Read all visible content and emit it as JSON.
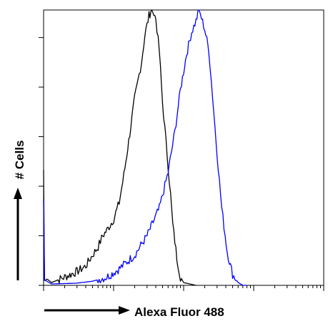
{
  "chart_data": {
    "type": "line",
    "title": "",
    "xlabel": "Alexa Fluor 488",
    "ylabel": "# Cells",
    "x_scale": "log",
    "xlim": [
      1,
      10000
    ],
    "ylim": [
      0,
      100
    ],
    "grid": false,
    "legend": "none",
    "y_tick_values": [
      0,
      18,
      36,
      54,
      72,
      90
    ],
    "series": [
      {
        "color": "#000000",
        "points": [
          [
            1.0,
            42
          ],
          [
            1.03,
            3
          ],
          [
            1.3,
            1
          ],
          [
            2,
            3
          ],
          [
            3,
            5
          ],
          [
            4,
            7
          ],
          [
            5,
            11
          ],
          [
            6,
            14
          ],
          [
            7,
            18
          ],
          [
            8,
            20
          ],
          [
            10,
            24
          ],
          [
            12,
            30
          ],
          [
            14,
            40
          ],
          [
            17,
            55
          ],
          [
            20,
            68
          ],
          [
            25,
            81
          ],
          [
            28,
            91
          ],
          [
            32,
            98
          ],
          [
            35,
            100
          ],
          [
            40,
            97
          ],
          [
            45,
            85
          ],
          [
            50,
            66
          ],
          [
            58,
            48
          ],
          [
            65,
            33
          ],
          [
            70,
            22
          ],
          [
            80,
            10
          ],
          [
            90,
            3
          ],
          [
            100,
            1
          ],
          [
            150,
            0
          ]
        ]
      },
      {
        "color": "#0000ff",
        "points": [
          [
            1.0,
            30
          ],
          [
            1.03,
            2
          ],
          [
            1.3,
            0.5
          ],
          [
            3,
            0.8
          ],
          [
            5,
            1.5
          ],
          [
            8,
            3
          ],
          [
            12,
            6
          ],
          [
            20,
            11
          ],
          [
            30,
            18
          ],
          [
            45,
            28
          ],
          [
            60,
            41
          ],
          [
            75,
            56
          ],
          [
            90,
            71
          ],
          [
            110,
            84
          ],
          [
            130,
            92
          ],
          [
            150,
            96
          ],
          [
            165,
            100
          ],
          [
            180,
            97
          ],
          [
            200,
            93
          ],
          [
            230,
            85
          ],
          [
            260,
            68
          ],
          [
            300,
            48
          ],
          [
            350,
            28
          ],
          [
            420,
            12
          ],
          [
            500,
            4
          ],
          [
            600,
            1
          ],
          [
            700,
            0
          ],
          [
            800,
            0
          ]
        ]
      }
    ]
  }
}
